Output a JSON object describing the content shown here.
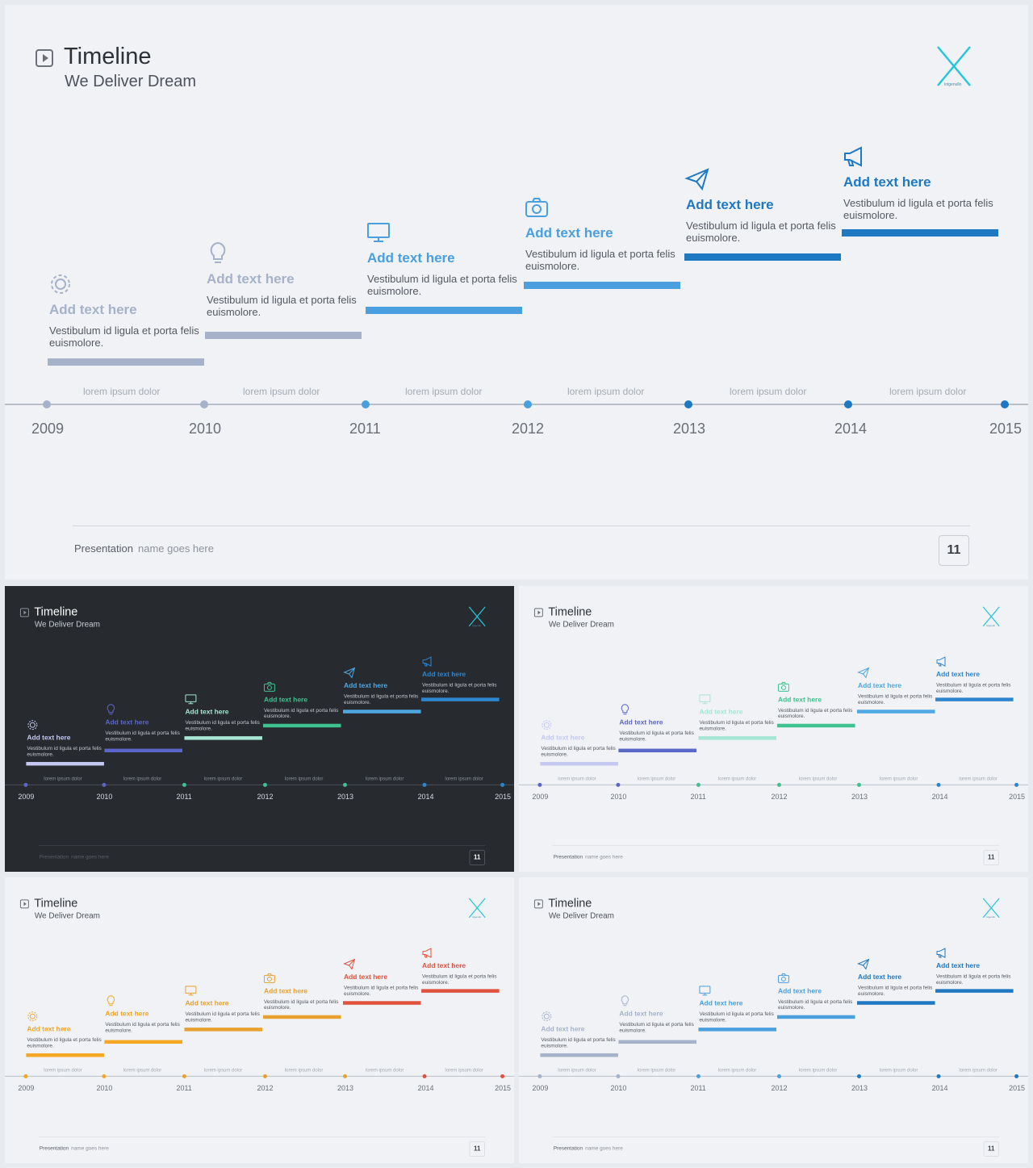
{
  "slide": {
    "title": "Timeline",
    "subtitle": "We Deliver Dream",
    "logo_icon": "x-logo-icon",
    "logo_caption": "lotgenullo",
    "block_heading": "Add text here",
    "block_text": "Vestibulum id ligula et porta felis euismolore.",
    "segment_label": "lorem ipsum dolor",
    "years": [
      "2009",
      "2010",
      "2011",
      "2012",
      "2013",
      "2014",
      "2015"
    ],
    "block_icons": [
      "gear-icon",
      "lightbulb-icon",
      "monitor-icon",
      "camera-icon",
      "paper-plane-icon",
      "megaphone-icon"
    ],
    "footer_strong": "Presentation",
    "footer_light": "name goes here",
    "page_number": "11"
  },
  "variants": [
    {
      "name": "light-blue",
      "theme": "light",
      "colors": [
        "#a5b2c9",
        "#a5b2c9",
        "#4a9fdf",
        "#4a9fdf",
        "#1f78c2",
        "#1f78c2"
      ],
      "dots": [
        "#a5b2c9",
        "#a5b2c9",
        "#4a9fdf",
        "#4a9fdf",
        "#1f78c2",
        "#1f78c2",
        "#1f78c2"
      ],
      "logo_color": "#26c6da"
    },
    {
      "name": "dark-multi",
      "theme": "dark",
      "colors": [
        "#c5c9f2",
        "#5a67c9",
        "#a6e6d2",
        "#3ec28f",
        "#4ea8e3",
        "#2d85cf"
      ],
      "dots": [
        "#5a67c9",
        "#5a67c9",
        "#3ec28f",
        "#3ec28f",
        "#3ec28f",
        "#2d85cf",
        "#2d85cf"
      ],
      "logo_color": "#26c6da"
    },
    {
      "name": "light-multi",
      "theme": "light",
      "colors": [
        "#c5c9f2",
        "#5a67c9",
        "#a6e6d2",
        "#3ec28f",
        "#4ea8e3",
        "#2d85cf"
      ],
      "dots": [
        "#5a67c9",
        "#5a67c9",
        "#3ec28f",
        "#3ec28f",
        "#3ec28f",
        "#2d85cf",
        "#2d85cf"
      ],
      "logo_color": "#26c6da"
    },
    {
      "name": "light-warm",
      "theme": "light",
      "colors": [
        "#f5a623",
        "#f5a623",
        "#e8a030",
        "#e8a030",
        "#e0523d",
        "#e0523d"
      ],
      "dots": [
        "#f5a623",
        "#f5a623",
        "#e8a030",
        "#e8a030",
        "#e8a030",
        "#e0523d",
        "#e0523d"
      ],
      "logo_color": "#26c6da"
    },
    {
      "name": "light-blue-small",
      "theme": "light",
      "colors": [
        "#a5b2c9",
        "#a5b2c9",
        "#4a9fdf",
        "#4a9fdf",
        "#1f78c2",
        "#1f78c2"
      ],
      "dots": [
        "#a5b2c9",
        "#a5b2c9",
        "#4a9fdf",
        "#4a9fdf",
        "#1f78c2",
        "#1f78c2",
        "#1f78c2"
      ],
      "logo_color": "#26c6da"
    }
  ]
}
